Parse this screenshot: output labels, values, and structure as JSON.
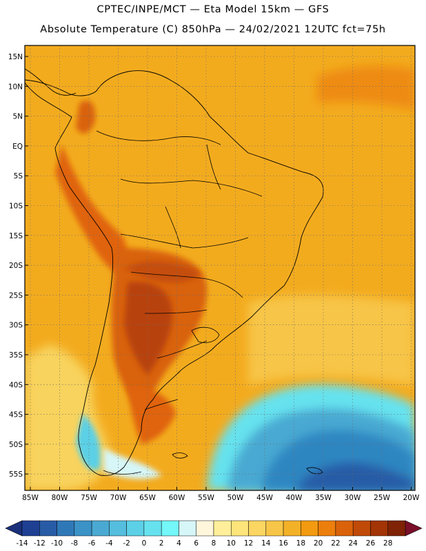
{
  "header": {
    "line1": "CPTEC/INPE/MCT —  Eta Model 15km — GFS",
    "line2": "Absolute Temperature (C) 850hPa — 24/02/2021 12UTC fct=75h"
  },
  "axes": {
    "lat_labels": [
      "15N",
      "10N",
      "5N",
      "EQ",
      "5S",
      "10S",
      "15S",
      "20S",
      "25S",
      "30S",
      "35S",
      "40S",
      "45S",
      "50S",
      "55S"
    ],
    "lon_labels": [
      "85W",
      "80W",
      "75W",
      "70W",
      "65W",
      "60W",
      "55W",
      "50W",
      "45W",
      "40W",
      "35W",
      "30W",
      "25W",
      "20W"
    ]
  },
  "colorbar": {
    "ticks": [
      "-14",
      "-12",
      "-10",
      "-8",
      "-6",
      "-4",
      "-2",
      "0",
      "2",
      "4",
      "6",
      "8",
      "10",
      "12",
      "14",
      "16",
      "18",
      "20",
      "22",
      "24",
      "26",
      "28"
    ],
    "colors": [
      "#1f3f93",
      "#285ba6",
      "#2f78b8",
      "#3a92c6",
      "#4aa9d2",
      "#55bede",
      "#5cd0e6",
      "#66e2ee",
      "#73f7f9",
      "#d6f6f8",
      "#fff6dc",
      "#ffef9a",
      "#fde47b",
      "#fbd662",
      "#f7c547",
      "#f3b128",
      "#f29a10",
      "#ec7e0c",
      "#d9620a",
      "#c04a08",
      "#a23406",
      "#7f2205"
    ],
    "under_color": "#1a2f7a",
    "over_color": "#7a0f2a"
  },
  "colors": {
    "background_field": "#f2a513",
    "land_warm": "#e7780d",
    "land_hot": "#c54e08",
    "cold_ocean": "#2f86c1"
  }
}
